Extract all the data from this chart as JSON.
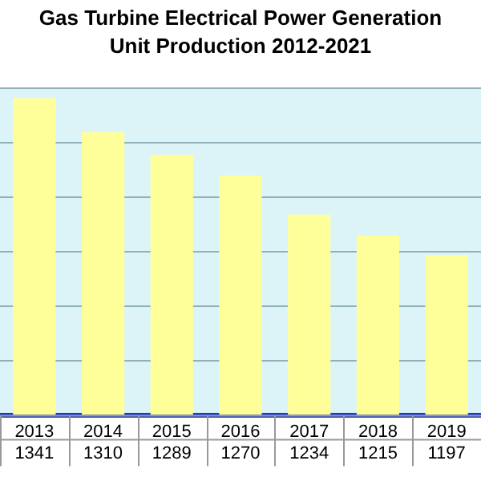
{
  "chart_data": {
    "type": "bar",
    "title": "Gas Turbine Electrical Power Generation",
    "subtitle": "Unit Production 2012-2021",
    "categories": [
      "2013",
      "2014",
      "2015",
      "2016",
      "2017",
      "2018",
      "2019"
    ],
    "values": [
      1341,
      1310,
      1289,
      1270,
      1234,
      1215,
      1197
    ],
    "color": "#ffff99",
    "ylim": [
      1050,
      1350
    ],
    "yticks": [
      {
        "value": 1050,
        "label": null
      },
      {
        "value": 1100,
        "label": null
      },
      {
        "value": 1150,
        "label": null
      },
      {
        "value": 1200,
        "label": null
      },
      {
        "value": 1250,
        "label": null
      },
      {
        "value": 1300,
        "label": null
      },
      {
        "value": 1350,
        "label": null
      }
    ],
    "grid": "y",
    "tick_labels": "x",
    "data_labels": true
  }
}
